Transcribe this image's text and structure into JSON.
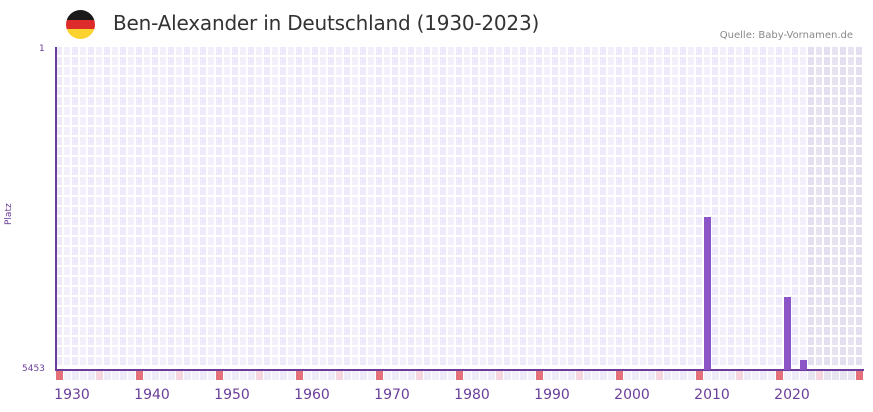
{
  "header": {
    "title": "Ben-Alexander in Deutschland (1930-2023)",
    "source": "Quelle: Baby-Vornamen.de",
    "flag_colors": [
      "#1a1a1a",
      "#dd2a2a",
      "#fbd22e"
    ]
  },
  "colors": {
    "accent": "#6a3d9a",
    "bar": "#8b55c8",
    "cell_a": "#efeafa",
    "cell_b": "#f3f0fb",
    "shaded_a": "#e3dfef",
    "shaded_b": "#e7e3f0",
    "marker_strong": "#e4707a",
    "marker_light": "#f5d5de"
  },
  "chart_data": {
    "type": "bar",
    "title": "Ben-Alexander in Deutschland (1930-2023)",
    "xlabel": "",
    "ylabel": "Platz",
    "y_inverted": true,
    "ylim": [
      1,
      5453
    ],
    "y_ticks": [
      "1",
      "5453"
    ],
    "x_range": [
      1928,
      2028
    ],
    "x_ticks": [
      "1930",
      "1940",
      "1950",
      "1960",
      "1970",
      "1980",
      "1990",
      "2000",
      "2010",
      "2020"
    ],
    "shaded_from_year": 2022,
    "grid": true,
    "series": [
      {
        "name": "Platz",
        "points": [
          {
            "year": 2009,
            "rank": 2846
          },
          {
            "year": 2019,
            "rank": 4210
          },
          {
            "year": 2021,
            "rank": 5282
          }
        ]
      }
    ]
  }
}
